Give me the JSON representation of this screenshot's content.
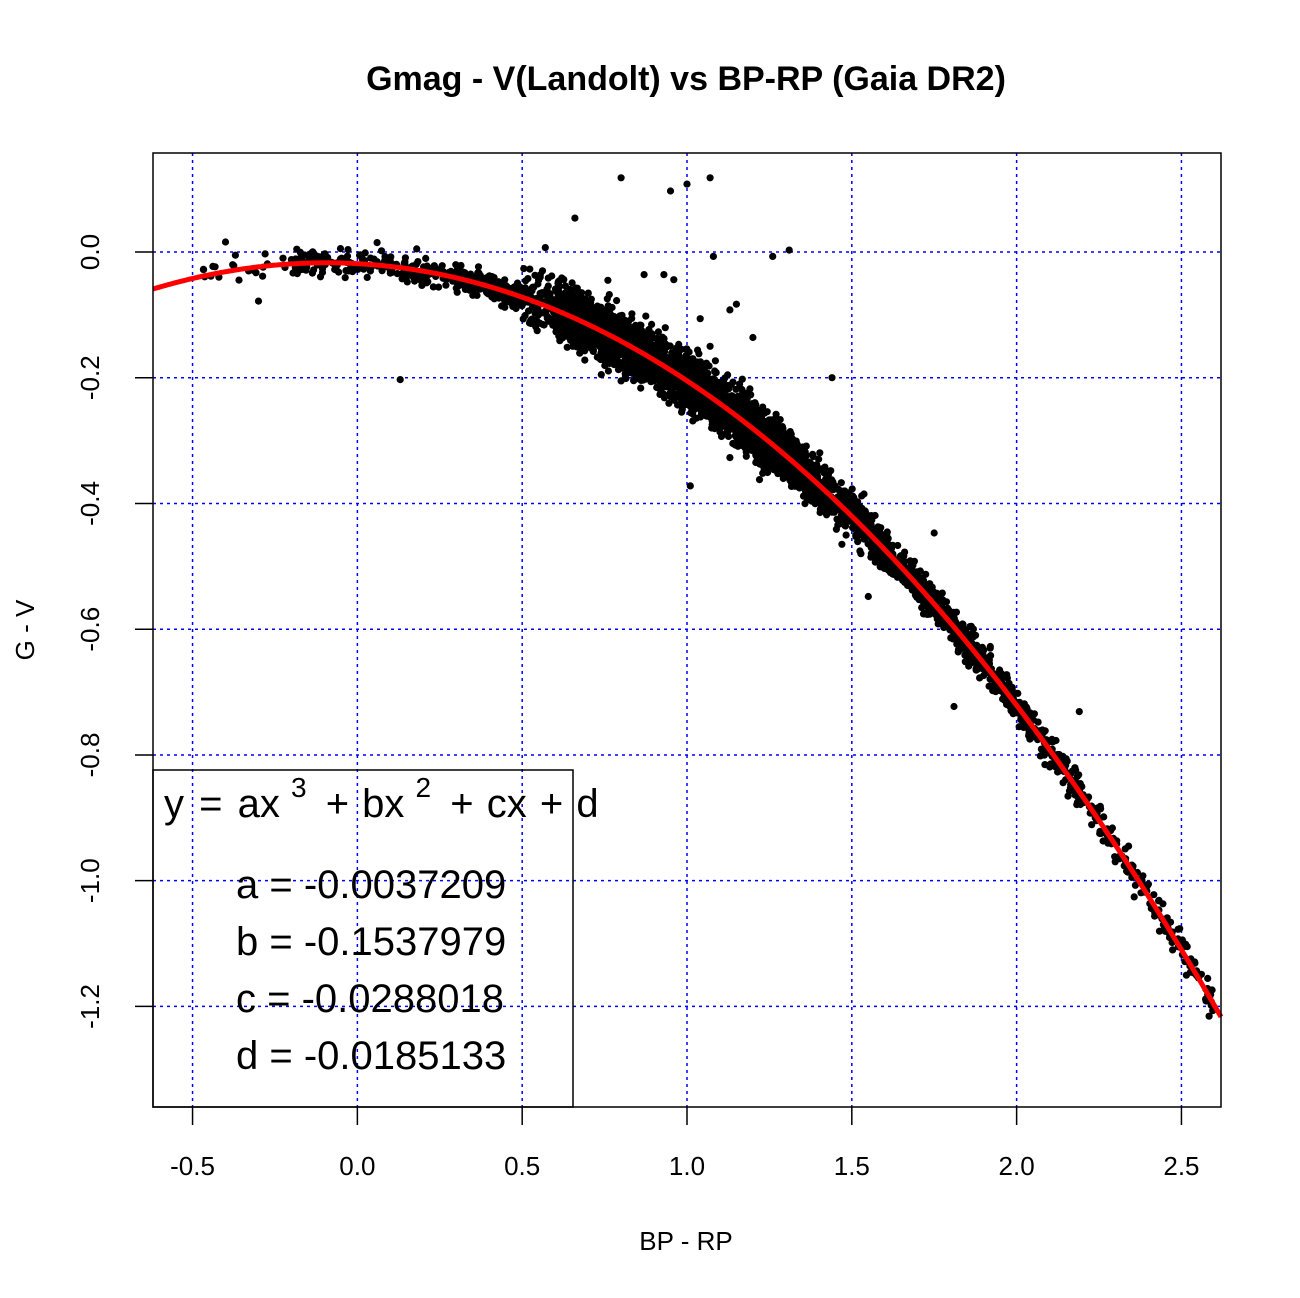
{
  "chart_data": {
    "type": "scatter",
    "title": "Gmag - V(Landolt) vs BP-RP (Gaia DR2)",
    "xlabel": "BP - RP",
    "ylabel": "G - V",
    "xlim": [
      -0.62,
      2.62
    ],
    "ylim": [
      -1.36,
      0.1575
    ],
    "grid": true,
    "grid_color": "#0000ff",
    "point_color": "#000000",
    "fit_color": "#ff0000",
    "x_ticks": [
      -0.5,
      0.0,
      0.5,
      1.0,
      1.5,
      2.0,
      2.5
    ],
    "x_tick_labels": [
      "-0.5",
      "0.0",
      "0.5",
      "1.0",
      "1.5",
      "2.0",
      "2.5"
    ],
    "y_ticks": [
      0.0,
      -0.2,
      -0.4,
      -0.6,
      -0.8,
      -1.0,
      -1.2
    ],
    "y_tick_labels": [
      "0.0",
      "-0.2",
      "-0.4",
      "-0.6",
      "-0.8",
      "-1.0",
      "-1.2"
    ],
    "fit": {
      "model": "cubic",
      "a": -0.0037209,
      "b": -0.1537979,
      "c": -0.0288018,
      "d": -0.0185133
    },
    "legend": {
      "placement": "bottom-left",
      "formula": {
        "y": "y",
        "eq": "=",
        "ax": "ax",
        "p3": "3",
        "plus1": "+",
        "bx": "bx",
        "p2": "2",
        "plus2": "+",
        "cx": "cx",
        "plus3": "+",
        "d": "d"
      },
      "lines": [
        "a = -0.0037209",
        "b = -0.1537979",
        "c = -0.0288018",
        "d = -0.0185133"
      ]
    },
    "outliers": [
      [
        0.8,
        0.118
      ],
      [
        0.95,
        0.097
      ],
      [
        1.0,
        0.108
      ],
      [
        1.07,
        0.118
      ],
      [
        0.66,
        0.054
      ],
      [
        0.57,
        0.007
      ],
      [
        1.08,
        -0.007
      ],
      [
        1.26,
        -0.007
      ],
      [
        1.31,
        0.003
      ],
      [
        0.13,
        -0.203
      ],
      [
        -0.3,
        -0.078
      ],
      [
        -0.4,
        0.016
      ],
      [
        -0.37,
        -0.005
      ],
      [
        -0.33,
        -0.03
      ],
      [
        -0.42,
        -0.04
      ],
      [
        -0.2,
        -0.012
      ],
      [
        -0.28,
        -0.003
      ],
      [
        0.06,
        0.015
      ],
      [
        0.18,
        0.005
      ],
      [
        0.17,
        -0.04
      ],
      [
        0.76,
        -0.045
      ],
      [
        0.87,
        -0.036
      ],
      [
        0.93,
        -0.036
      ],
      [
        0.96,
        -0.044
      ],
      [
        1.15,
        -0.083
      ],
      [
        1.13,
        -0.092
      ],
      [
        1.04,
        -0.106
      ],
      [
        1.2,
        -0.136
      ],
      [
        1.44,
        -0.2
      ],
      [
        1.0,
        -0.156
      ],
      [
        1.07,
        -0.15
      ],
      [
        0.74,
        -0.195
      ],
      [
        0.8,
        -0.205
      ],
      [
        0.89,
        -0.203
      ],
      [
        0.69,
        -0.172
      ],
      [
        1.01,
        -0.372
      ],
      [
        1.13,
        -0.327
      ],
      [
        1.18,
        -0.325
      ],
      [
        1.22,
        -0.362
      ],
      [
        1.32,
        -0.314
      ],
      [
        1.75,
        -0.447
      ],
      [
        1.69,
        -0.492
      ],
      [
        1.55,
        -0.548
      ],
      [
        2.19,
        -0.731
      ],
      [
        1.81,
        -0.723
      ],
      [
        1.72,
        -0.563
      ],
      [
        1.53,
        -0.388
      ],
      [
        1.87,
        -0.644
      ],
      [
        1.47,
        -0.465
      ]
    ],
    "band_offsets": [
      -0.5,
      -0.45,
      -0.4,
      -0.35,
      -0.3,
      -0.25,
      -0.2,
      -0.15,
      -0.1,
      -0.05,
      0.0,
      0.05,
      0.1,
      0.15,
      0.2,
      0.25,
      0.3,
      0.35,
      0.4,
      0.45,
      0.5,
      0.55,
      0.6,
      0.65,
      0.7,
      0.75,
      0.8,
      0.85,
      0.9,
      0.95,
      1.0,
      1.05,
      1.1,
      1.15,
      1.2,
      1.25,
      1.3,
      1.35,
      1.4,
      1.45,
      1.5,
      1.55,
      1.6,
      1.65,
      1.7,
      1.75,
      1.8,
      1.85,
      1.9,
      1.95,
      2.0,
      2.05,
      2.1,
      2.15,
      2.2,
      2.25,
      2.3,
      2.35,
      2.4,
      2.45,
      2.5,
      2.55,
      2.6
    ]
  }
}
